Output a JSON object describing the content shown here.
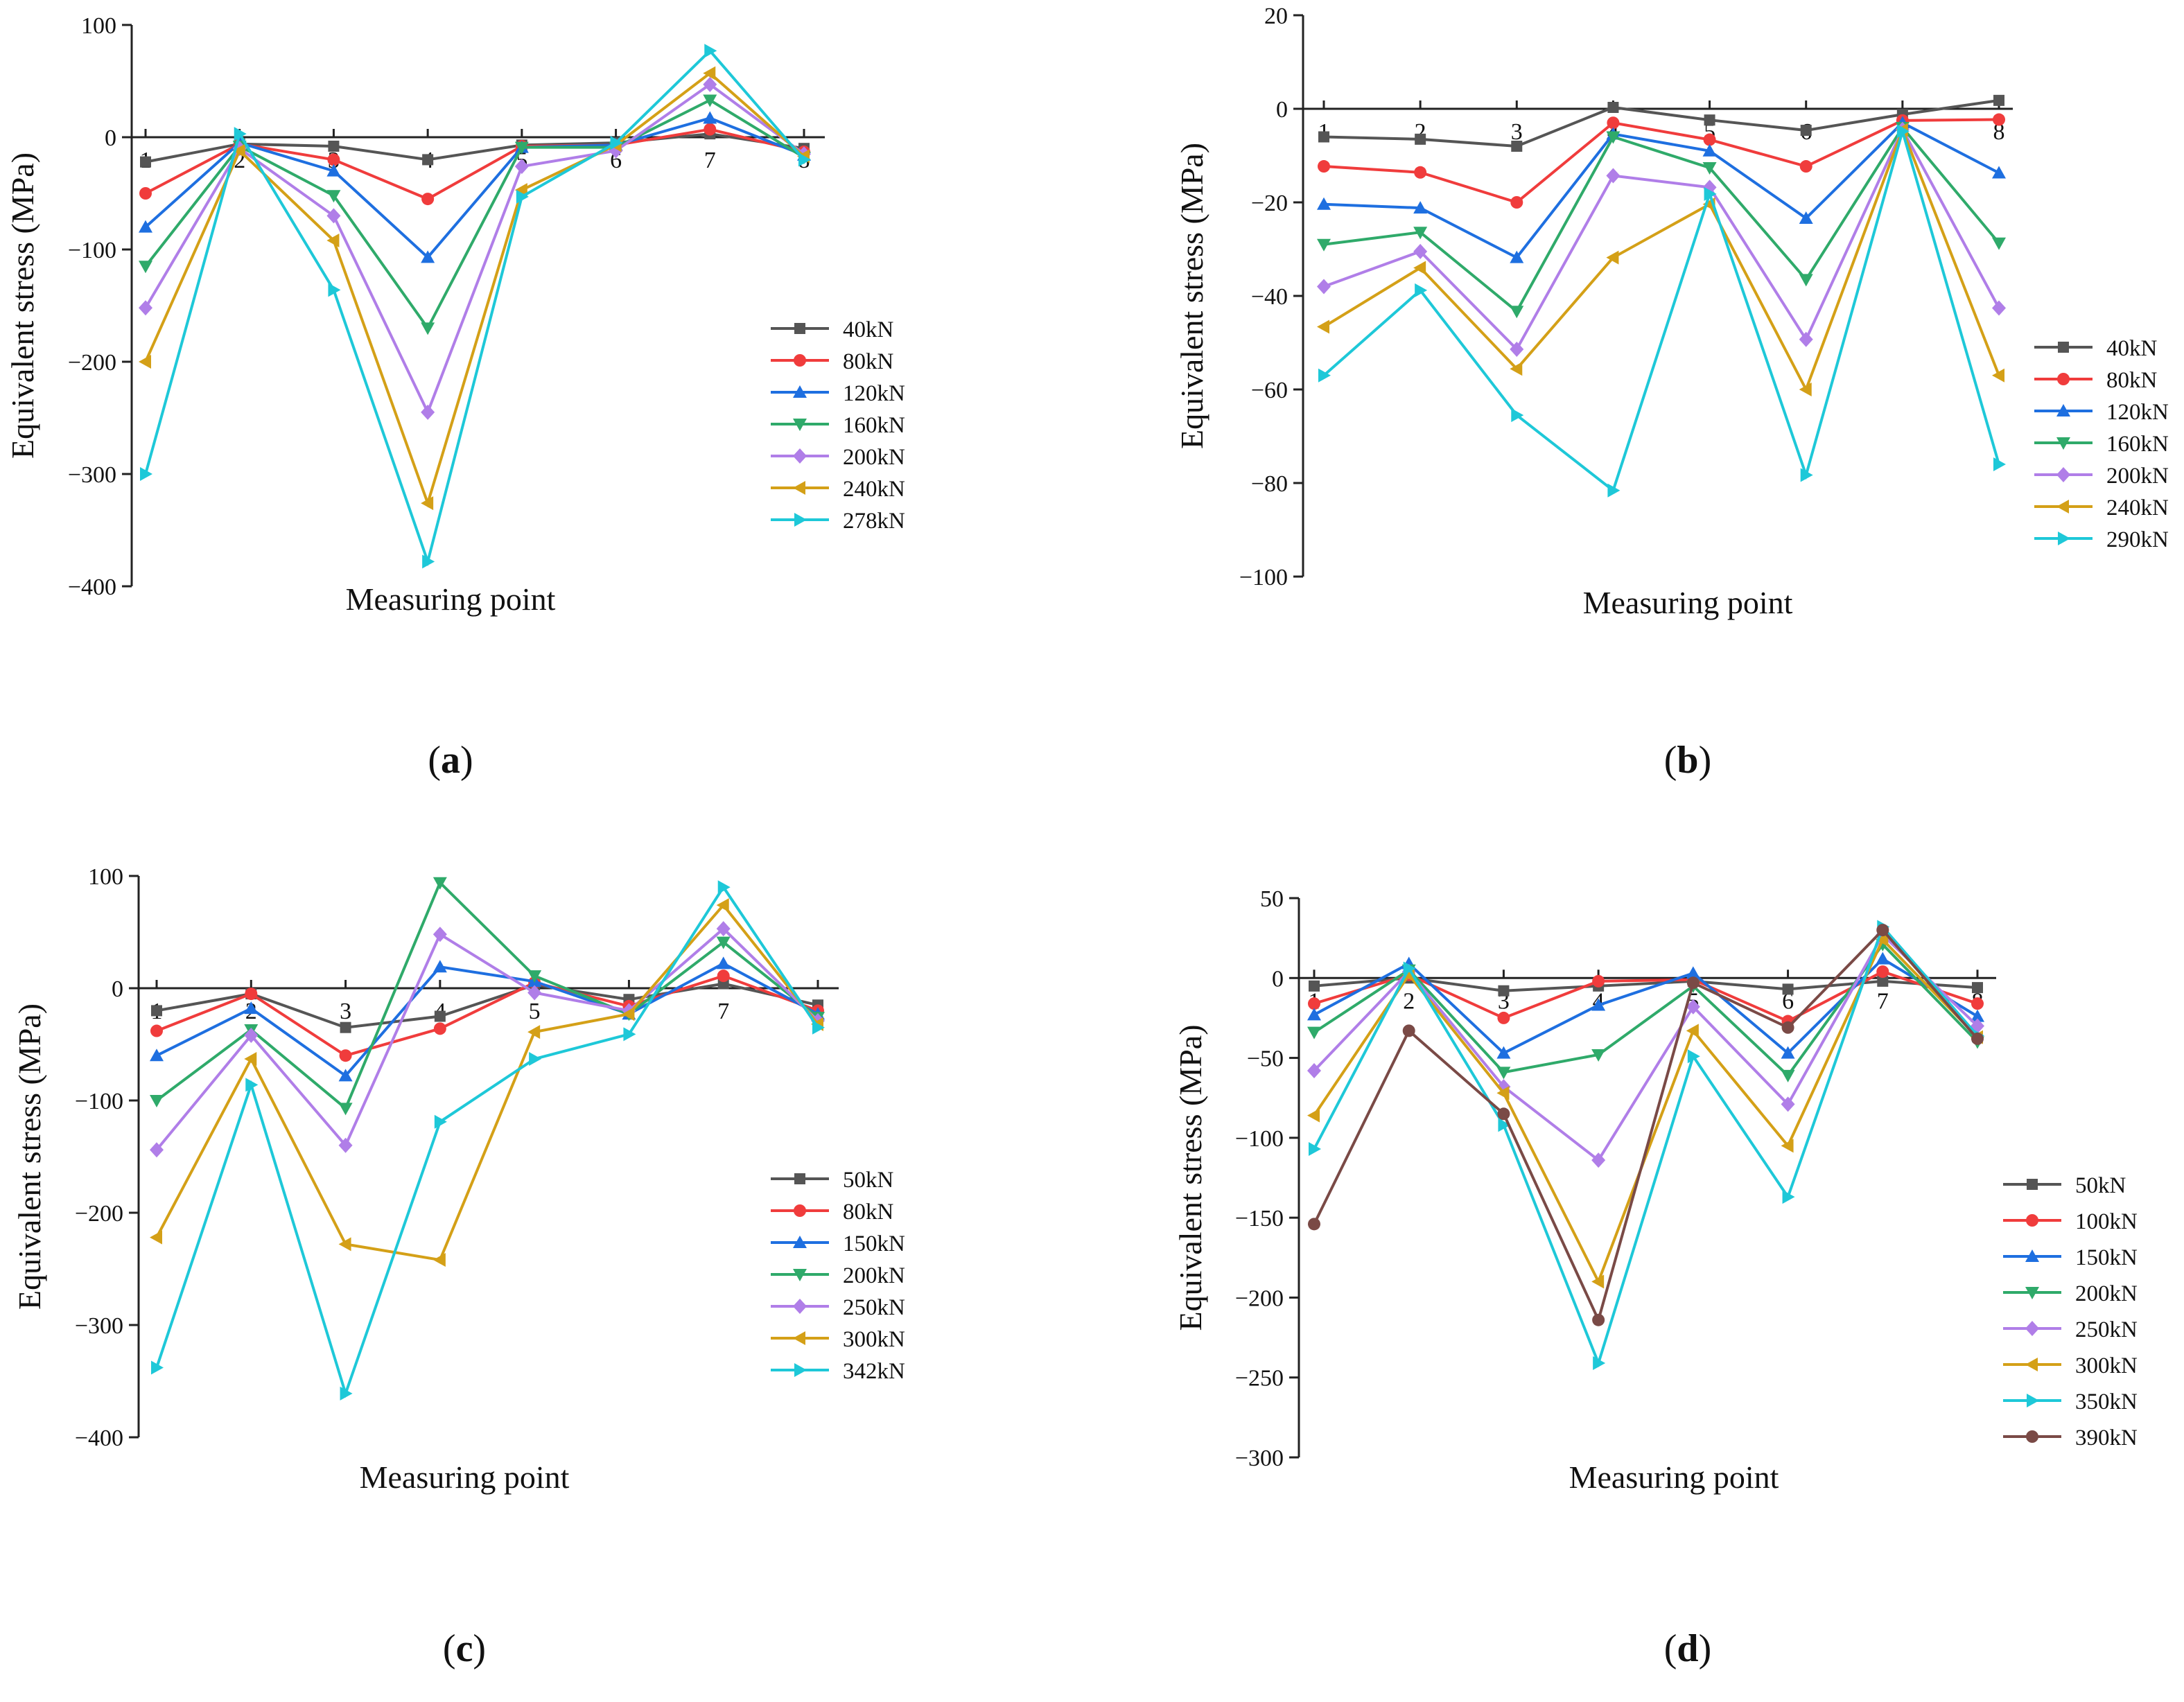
{
  "chart_data": [
    {
      "type": "line",
      "panel_label": "a",
      "xlabel": "Measuring point",
      "ylabel": "Equivalent stress (MPa)",
      "x": [
        1,
        2,
        3,
        4,
        5,
        6,
        7,
        8
      ],
      "xtick_labels": [
        "1",
        "2",
        "3",
        "4",
        "5",
        "6",
        "7",
        "8"
      ],
      "ylim": [
        -400,
        100
      ],
      "yticks": [
        100,
        0,
        -100,
        -200,
        -300,
        -400
      ],
      "ytick_labels": [
        "100",
        "0",
        "−100",
        "−200",
        "−300",
        "−400"
      ],
      "legend_position": "right",
      "series": [
        {
          "name": "40kN",
          "values": [
            -22,
            -6,
            -8,
            -20,
            -7,
            -5,
            3,
            -10
          ]
        },
        {
          "name": "80kN",
          "values": [
            -50,
            -6,
            -20,
            -55,
            -8,
            -7,
            7,
            -13
          ]
        },
        {
          "name": "120kN",
          "values": [
            -80,
            -5,
            -30,
            -107,
            -9,
            -7,
            17,
            -16
          ]
        },
        {
          "name": "160kN",
          "values": [
            -115,
            -8,
            -52,
            -170,
            -9,
            -9,
            33,
            -18
          ]
        },
        {
          "name": "200kN",
          "values": [
            -152,
            -10,
            -70,
            -245,
            -26,
            -12,
            47,
            -15
          ]
        },
        {
          "name": "240kN",
          "values": [
            -200,
            -12,
            -92,
            -326,
            -47,
            -7,
            57,
            -17
          ]
        },
        {
          "name": "278kN",
          "values": [
            -300,
            3,
            -136,
            -378,
            -53,
            -5,
            77,
            -20
          ]
        }
      ]
    },
    {
      "type": "line",
      "panel_label": "b",
      "xlabel": "Measuring point",
      "ylabel": "Equivalent stress (MPa)",
      "x": [
        1,
        2,
        3,
        4,
        5,
        6,
        7,
        8
      ],
      "xtick_labels": [
        "1",
        "2",
        "3",
        "4",
        "5",
        "6",
        "7",
        "8"
      ],
      "ylim": [
        -100,
        20
      ],
      "yticks": [
        20,
        0,
        -20,
        -40,
        -60,
        -80,
        -100
      ],
      "ytick_labels": [
        "20",
        "0",
        "−20",
        "−40",
        "−60",
        "−80",
        "−100"
      ],
      "legend_position": "right",
      "series": [
        {
          "name": "40kN",
          "values": [
            -6,
            -6.5,
            -8,
            0.3,
            -2.4,
            -4.6,
            -1.2,
            1.8
          ]
        },
        {
          "name": "80kN",
          "values": [
            -12.3,
            -13.6,
            -20,
            -3,
            -6.6,
            -12.3,
            -2.5,
            -2.3
          ]
        },
        {
          "name": "120kN",
          "values": [
            -20.4,
            -21.2,
            -31.8,
            -5.4,
            -9,
            -23.4,
            -3,
            -13.7
          ]
        },
        {
          "name": "160kN",
          "values": [
            -29,
            -26.4,
            -43.3,
            -6,
            -12.6,
            -36.5,
            -4,
            -28.7
          ]
        },
        {
          "name": "200kN",
          "values": [
            -38,
            -30.5,
            -51.4,
            -14.3,
            -16.8,
            -49.3,
            -4.4,
            -42.6
          ]
        },
        {
          "name": "240kN",
          "values": [
            -46.6,
            -34,
            -55.6,
            -31.8,
            -20.4,
            -60,
            -4.5,
            -57
          ]
        },
        {
          "name": "290kN",
          "values": [
            -57,
            -38.8,
            -65.5,
            -81.6,
            -18.2,
            -78.3,
            -4.8,
            -76
          ]
        }
      ]
    },
    {
      "type": "line",
      "panel_label": "c",
      "xlabel": "Measuring point",
      "ylabel": "Equivalent stress (MPa)",
      "x": [
        1,
        2,
        3,
        4,
        5,
        6,
        7,
        8
      ],
      "xtick_labels": [
        "1",
        "2",
        "3",
        "4",
        "5",
        "6",
        "7",
        "8"
      ],
      "ylim": [
        -400,
        100
      ],
      "yticks": [
        100,
        0,
        -100,
        -200,
        -300,
        -400
      ],
      "ytick_labels": [
        "100",
        "0",
        "−100",
        "−200",
        "−300",
        "−400"
      ],
      "legend_position": "right",
      "series": [
        {
          "name": "50kN",
          "values": [
            -20,
            -5,
            -35,
            -25,
            3,
            -10,
            4,
            -15
          ]
        },
        {
          "name": "80kN",
          "values": [
            -38,
            -5,
            -60,
            -36,
            5,
            -16,
            11,
            -20
          ]
        },
        {
          "name": "150kN",
          "values": [
            -60,
            -18,
            -78,
            19,
            6,
            -23,
            22,
            -23
          ]
        },
        {
          "name": "200kN",
          "values": [
            -100,
            -37,
            -107,
            94,
            11,
            -23,
            41,
            -26
          ]
        },
        {
          "name": "250kN",
          "values": [
            -144,
            -42,
            -140,
            48,
            -4,
            -20,
            53,
            -29
          ]
        },
        {
          "name": "300kN",
          "values": [
            -222,
            -63,
            -228,
            -242,
            -39,
            -23,
            74,
            -32
          ]
        },
        {
          "name": "342kN",
          "values": [
            -338,
            -86,
            -361,
            -119,
            -63,
            -41,
            90,
            -35
          ]
        }
      ]
    },
    {
      "type": "line",
      "panel_label": "d",
      "xlabel": "Measuring point",
      "ylabel": "Equivalent stress (MPa)",
      "x": [
        1,
        2,
        3,
        4,
        5,
        6,
        7,
        8
      ],
      "xtick_labels": [
        "1",
        "2",
        "3",
        "4",
        "5",
        "6",
        "7",
        "8"
      ],
      "ylim": [
        -300,
        50
      ],
      "yticks": [
        50,
        0,
        -50,
        -100,
        -150,
        -200,
        -250,
        -300
      ],
      "ytick_labels": [
        "50",
        "0",
        "−50",
        "−100",
        "−150",
        "−200",
        "−250",
        "−300"
      ],
      "legend_position": "right",
      "series": [
        {
          "name": "50kN",
          "values": [
            -5,
            0,
            -8,
            -5,
            -2,
            -7,
            -2,
            -6
          ]
        },
        {
          "name": "100kN",
          "values": [
            -16,
            2,
            -25,
            -2,
            -1,
            -27,
            4,
            -16
          ]
        },
        {
          "name": "150kN",
          "values": [
            -23,
            9,
            -47,
            -17,
            3,
            -47,
            12,
            -24
          ]
        },
        {
          "name": "200kN",
          "values": [
            -34,
            5,
            -59,
            -48,
            -5,
            -61,
            21,
            -40
          ]
        },
        {
          "name": "250kN",
          "values": [
            -58,
            4,
            -68,
            -114,
            -18,
            -79,
            27,
            -30
          ]
        },
        {
          "name": "300kN",
          "values": [
            -86,
            2,
            -72,
            -190,
            -33,
            -105,
            24,
            -37
          ]
        },
        {
          "name": "350kN",
          "values": [
            -107,
            6,
            -92,
            -241,
            -49,
            -137,
            32,
            -36
          ]
        },
        {
          "name": "390kN",
          "values": [
            -154,
            -33,
            -85,
            -214,
            -3,
            -31,
            30,
            -38
          ]
        }
      ]
    }
  ],
  "series_colors": [
    "#555555",
    "#f03c3c",
    "#1e6fe0",
    "#2faa6a",
    "#b07ee8",
    "#d4a017",
    "#1ec8d8",
    "#7a4a46"
  ],
  "series_markers": [
    "square",
    "circle",
    "triangle-up",
    "triangle-down",
    "diamond",
    "triangle-left",
    "triangle-right",
    "circle"
  ]
}
